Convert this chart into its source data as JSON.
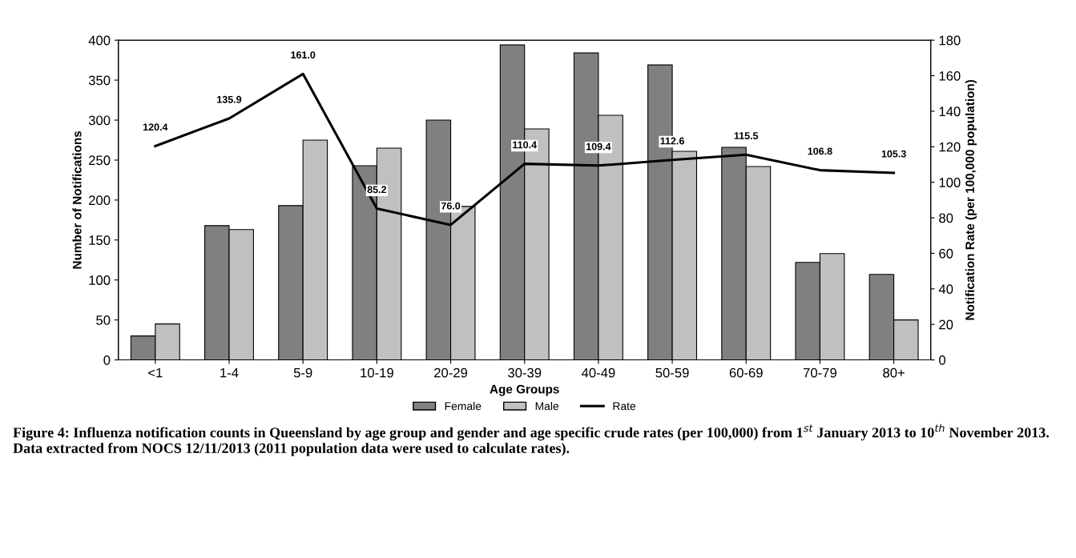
{
  "chart_data": {
    "type": "bar",
    "xlabel": "Age Groups",
    "ylabel": "Number of Notifications",
    "y2label": "Notification Rate (per 100,000 population)",
    "categories": [
      "<1",
      "1-4",
      "5-9",
      "10-19",
      "20-29",
      "30-39",
      "40-49",
      "50-59",
      "60-69",
      "70-79",
      "80+"
    ],
    "series": [
      {
        "name": "Female",
        "color": "#808080",
        "values": [
          30,
          168,
          193,
          243,
          300,
          394,
          384,
          369,
          266,
          122,
          107
        ]
      },
      {
        "name": "Male",
        "color": "#c0c0c0",
        "values": [
          45,
          163,
          275,
          265,
          192,
          289,
          306,
          261,
          242,
          133,
          50
        ]
      },
      {
        "name": "Rate",
        "type": "line",
        "axis": "y2",
        "color": "#000000",
        "values": [
          120.4,
          135.9,
          161.0,
          85.2,
          76.0,
          110.4,
          109.4,
          112.6,
          115.5,
          106.8,
          105.3
        ],
        "value_labels": [
          "120.4",
          "135.9",
          "161.0",
          "85.2",
          "76.0",
          "110.4",
          "109.4",
          "112.6",
          "115.5",
          "106.8",
          "105.3"
        ]
      }
    ],
    "ylim": [
      0,
      400
    ],
    "yticks": [
      0,
      50,
      100,
      150,
      200,
      250,
      300,
      350,
      400
    ],
    "y2lim": [
      0,
      180
    ],
    "y2ticks": [
      0,
      20,
      40,
      60,
      80,
      100,
      120,
      140,
      160,
      180
    ],
    "legend": "bottom",
    "grid": false,
    "annotations": [
      "Figure 4: Influenza notification counts in Queensland by age group and gender and age specific crude rates (per 100,000) from 1$^{st}$ January 2013 to 10$^{th}$ November 2013. Data extracted from NOCS 12/11/2013 (2011 population data were used to calculate rates)."
    ]
  }
}
